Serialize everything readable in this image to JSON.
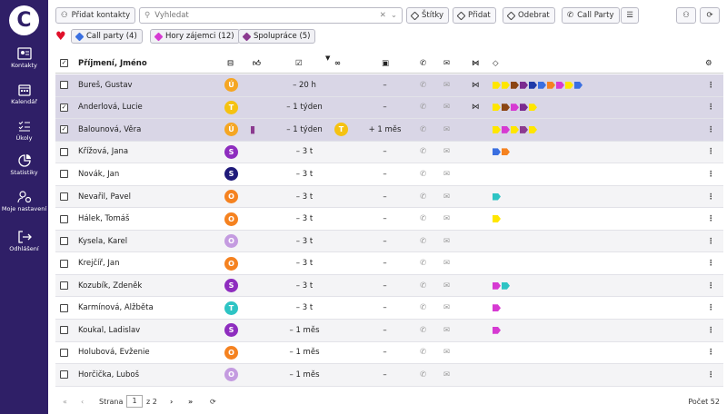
{
  "sidebar": {
    "items": [
      {
        "label": "Kontakty",
        "icon": "contacts-icon"
      },
      {
        "label": "Kalendář",
        "icon": "calendar-icon"
      },
      {
        "label": "Úkoly",
        "icon": "tasks-icon"
      },
      {
        "label": "Statistiky",
        "icon": "stats-icon"
      },
      {
        "label": "Moje nastavení",
        "icon": "settings-icon"
      },
      {
        "label": "Odhlášení",
        "icon": "logout-icon"
      }
    ]
  },
  "toolbar": {
    "add_contacts": "Přidat kontakty",
    "search_placeholder": "Vyhledat",
    "labels": "Štítky",
    "add": "Přidat",
    "remove": "Odebrat",
    "call_party": "Call Party"
  },
  "filters": [
    {
      "label": "Call party (4)",
      "color": "#3a6fe0"
    },
    {
      "label": "Hory zájemci (12)",
      "color": "#d63ad2"
    },
    {
      "label": "Spolupráce (5)",
      "color": "#8b3a8f"
    }
  ],
  "table": {
    "name_header": "Příjmení, Jméno"
  },
  "rows": [
    {
      "name": "Bureš, Gustav",
      "av": "Ú",
      "avc": "#f5a623",
      "c1": "– 20 h",
      "c2": "",
      "c3": "–",
      "share": true,
      "tags": [
        "#ffe600",
        "#ffe600",
        "#8b4513",
        "#7a2a8f",
        "#1f3aa8",
        "#3a6fe0",
        "#f58220",
        "#d63ad2",
        "#ffe600",
        "#3a6fe0"
      ],
      "sel": true
    },
    {
      "name": "Anderlová, Lucie",
      "av": "T",
      "avc": "#f5c211",
      "c1": "– 1 týden",
      "c2": "",
      "c3": "–",
      "share": true,
      "tags": [
        "#ffe600",
        "#8b4513",
        "#d63ad2",
        "#7a2a8f",
        "#ffe600"
      ],
      "sel": true
    },
    {
      "name": "Balounová, Věra",
      "av": "Ú",
      "avc": "#f5a623",
      "c1": "– 1 týden",
      "c2": "T",
      "c3": "+ 1 měs",
      "share": false,
      "tags": [
        "#ffe600",
        "#d63ad2",
        "#ffe600",
        "#8b3a8f",
        "#ffe600"
      ],
      "sel": true,
      "thumb": true
    },
    {
      "name": "Křížová, Jana",
      "av": "S",
      "avc": "#8e2dbf",
      "c1": "– 3 t",
      "c2": "",
      "c3": "–",
      "share": false,
      "tags": [
        "#3a6fe0",
        "#f58220"
      ]
    },
    {
      "name": "Novák, Jan",
      "av": "S",
      "avc": "#1f1a7a",
      "c1": "– 3 t",
      "c2": "",
      "c3": "–",
      "share": false,
      "tags": []
    },
    {
      "name": "Nevařil, Pavel",
      "av": "O",
      "avc": "#f58220",
      "c1": "– 3 t",
      "c2": "",
      "c3": "–",
      "share": false,
      "tags": [
        "#2ec4c4"
      ]
    },
    {
      "name": "Hálek, Tomáš",
      "av": "O",
      "avc": "#f58220",
      "c1": "– 3 t",
      "c2": "",
      "c3": "–",
      "share": false,
      "tags": [
        "#ffe600"
      ]
    },
    {
      "name": "Kysela, Karel",
      "av": "O",
      "avc": "#c49be0",
      "c1": "– 3 t",
      "c2": "",
      "c3": "–",
      "share": false,
      "tags": []
    },
    {
      "name": "Krejčíř, Jan",
      "av": "O",
      "avc": "#f58220",
      "c1": "– 3 t",
      "c2": "",
      "c3": "–",
      "share": false,
      "tags": []
    },
    {
      "name": "Kozubík, Zdeněk",
      "av": "S",
      "avc": "#8e2dbf",
      "c1": "– 3 t",
      "c2": "",
      "c3": "–",
      "share": false,
      "tags": [
        "#d63ad2",
        "#2ec4c4"
      ]
    },
    {
      "name": "Karmínová, Alžběta",
      "av": "T",
      "avc": "#2ec4c4",
      "c1": "– 3 t",
      "c2": "",
      "c3": "–",
      "share": false,
      "tags": [
        "#d63ad2"
      ]
    },
    {
      "name": "Koukal, Ladislav",
      "av": "S",
      "avc": "#8e2dbf",
      "c1": "– 1 měs",
      "c2": "",
      "c3": "–",
      "share": false,
      "tags": [
        "#d63ad2"
      ]
    },
    {
      "name": "Holubová, Evženie",
      "av": "O",
      "avc": "#f58220",
      "c1": "– 1 měs",
      "c2": "",
      "c3": "–",
      "share": false,
      "tags": []
    },
    {
      "name": "Horčička, Luboš",
      "av": "O",
      "avc": "#c49be0",
      "c1": "– 1 měs",
      "c2": "",
      "c3": "–",
      "share": false,
      "tags": []
    }
  ],
  "footer": {
    "page_label": "Strana",
    "page_value": "1",
    "page_of": "z 2",
    "count_label": "Počet 52"
  }
}
